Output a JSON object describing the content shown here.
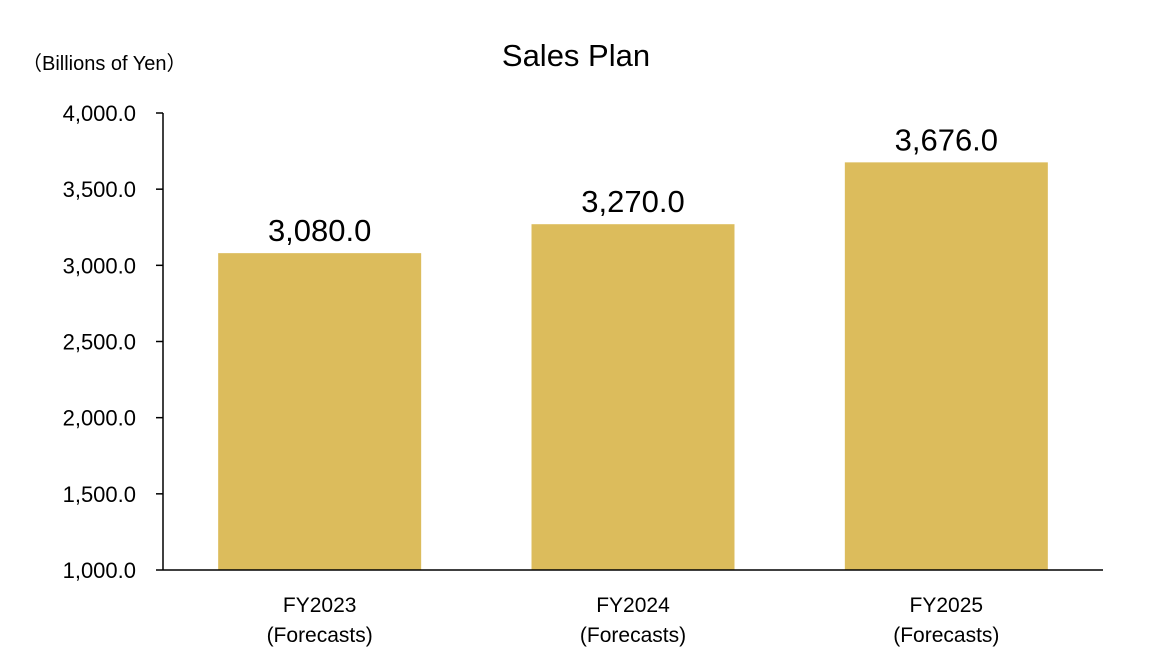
{
  "chart_data": {
    "type": "bar",
    "title": "Sales Plan",
    "unit_label": "（Billions of Yen）",
    "categories": [
      [
        "FY2023",
        "(Forecasts)"
      ],
      [
        "FY2024",
        "(Forecasts)"
      ],
      [
        "FY2025",
        "(Forecasts)"
      ]
    ],
    "values": [
      3080.0,
      3270.0,
      3676.0
    ],
    "value_labels": [
      "3,080.0",
      "3,270.0",
      "3,676.0"
    ],
    "ylim": [
      1000,
      4000
    ],
    "yticks": [
      1000,
      1500,
      2000,
      2500,
      3000,
      3500,
      4000
    ],
    "ytick_labels": [
      "1,000.0",
      "1,500.0",
      "2,000.0",
      "2,500.0",
      "3,000.0",
      "3,500.0",
      "4,000.0"
    ],
    "bar_color": "#DCBC5C",
    "grid": false,
    "legend": "none"
  }
}
